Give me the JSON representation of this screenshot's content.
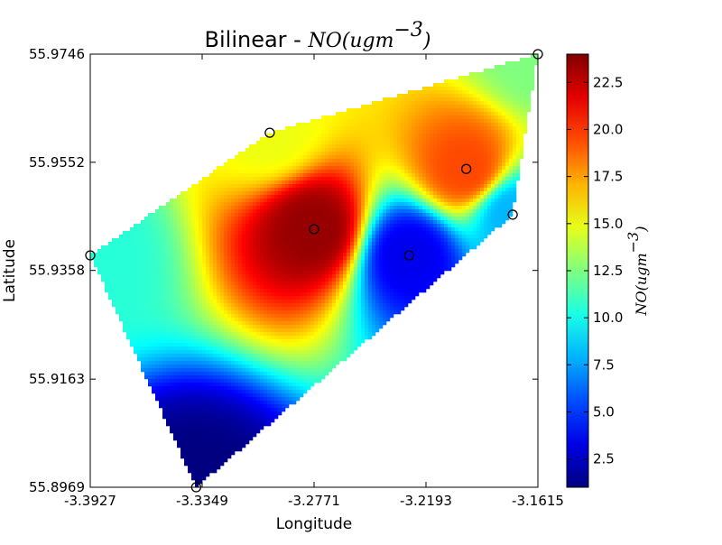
{
  "chart_data": {
    "type": "heatmap",
    "title": "Bilinear - ",
    "title_math": "NO(ugm",
    "title_math_sup": "−3",
    "title_math_close": ")",
    "xlabel": "Longitude",
    "ylabel": "Latitude",
    "xlim": [
      -3.3927,
      -3.1615
    ],
    "ylim": [
      55.8969,
      55.9746
    ],
    "x_ticks": [
      -3.3927,
      -3.3349,
      -3.2771,
      -3.2193,
      -3.1615
    ],
    "x_tick_labels": [
      "-3.3927",
      "-3.3349",
      "-3.2771",
      "-3.2193",
      "-3.1615"
    ],
    "y_ticks": [
      55.8969,
      55.9163,
      55.9358,
      55.9552,
      55.9746
    ],
    "y_tick_labels": [
      "55.8969",
      "55.9163",
      "55.9358",
      "55.9552",
      "55.9746"
    ],
    "colormap": "jet",
    "colorbar": {
      "vmin": 1.0,
      "vmax": 24.0,
      "ticks": [
        2.5,
        5.0,
        7.5,
        10.0,
        12.5,
        15.0,
        17.5,
        20.0,
        22.5
      ],
      "tick_labels": [
        "2.5",
        "5.0",
        "7.5",
        "10.0",
        "12.5",
        "15.0",
        "17.5",
        "20.0",
        "22.5"
      ],
      "label": "NO(ugm",
      "label_sup": "−3",
      "label_close": ")"
    },
    "stations": [
      {
        "lon": -3.3927,
        "lat": 55.9385,
        "value": 10.5
      },
      {
        "lon": -3.3,
        "lat": 55.9605,
        "value": 15.0
      },
      {
        "lon": -3.2771,
        "lat": 55.9432,
        "value": 23.5
      },
      {
        "lon": -3.228,
        "lat": 55.9385,
        "value": 3.5
      },
      {
        "lon": -3.1985,
        "lat": 55.954,
        "value": 19.5
      },
      {
        "lon": -3.1745,
        "lat": 55.9458,
        "value": 8.0
      },
      {
        "lon": -3.1615,
        "lat": 55.9746,
        "value": 12.5
      },
      {
        "lon": -3.338,
        "lat": 55.8969,
        "value": 1.0
      }
    ]
  }
}
